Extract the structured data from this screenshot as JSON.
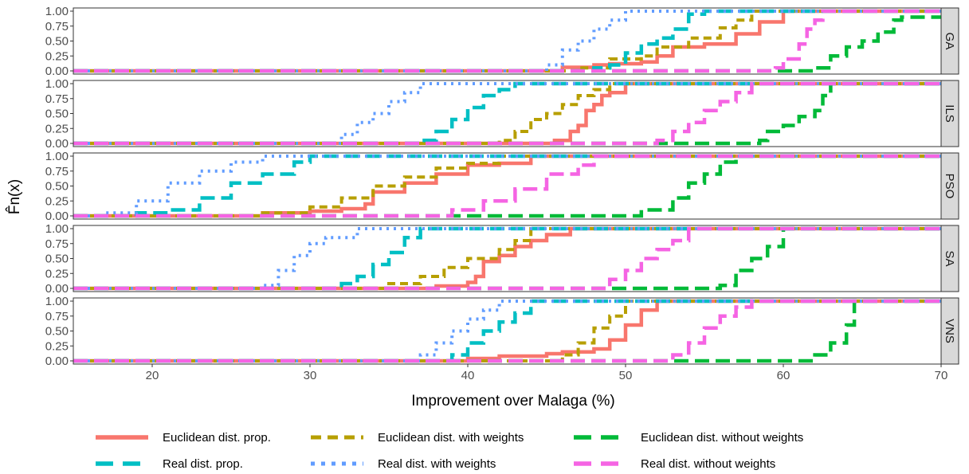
{
  "chart_data": {
    "type": "line",
    "subtype": "empirical-cdf-step",
    "xlabel": "Improvement over Malaga (%)",
    "ylabel": "F̂n(x)",
    "xlim": [
      15,
      70
    ],
    "ylim": [
      0,
      1
    ],
    "x_ticks": [
      20,
      30,
      40,
      50,
      60,
      70
    ],
    "y_ticks": [
      0.0,
      0.25,
      0.5,
      0.75,
      1.0
    ],
    "y_tick_labels": [
      "0.00",
      "0.25",
      "0.50",
      "0.75",
      "1.00"
    ],
    "grid": false,
    "facets": [
      "GA",
      "ILS",
      "PSO",
      "SA",
      "VNS"
    ],
    "legend_position": "bottom",
    "series": [
      {
        "name": "Euclidean dist. prop.",
        "color": "#F8766D",
        "dash": "solid",
        "cdf": {
          "GA": [
            [
              45.5,
              0
            ],
            [
              46,
              0.06
            ],
            [
              48,
              0.1
            ],
            [
              49,
              0.12
            ],
            [
              51,
              0.15
            ],
            [
              52,
              0.25
            ],
            [
              53,
              0.4
            ],
            [
              55,
              0.45
            ],
            [
              57,
              0.62
            ],
            [
              58.5,
              0.82
            ],
            [
              60,
              1
            ]
          ],
          "ILS": [
            [
              44.5,
              0
            ],
            [
              45.5,
              0.05
            ],
            [
              46.5,
              0.2
            ],
            [
              47,
              0.3
            ],
            [
              47.5,
              0.55
            ],
            [
              48,
              0.65
            ],
            [
              48.5,
              0.8
            ],
            [
              49,
              0.85
            ],
            [
              50,
              1
            ]
          ],
          "PSO": [
            [
              25,
              0
            ],
            [
              27,
              0.05
            ],
            [
              30,
              0.08
            ],
            [
              32,
              0.12
            ],
            [
              33.5,
              0.2
            ],
            [
              34,
              0.4
            ],
            [
              36,
              0.55
            ],
            [
              38,
              0.7
            ],
            [
              40,
              0.85
            ],
            [
              42,
              0.88
            ],
            [
              44,
              1
            ]
          ],
          "SA": [
            [
              36,
              0
            ],
            [
              38,
              0.04
            ],
            [
              40,
              0.1
            ],
            [
              40.5,
              0.2
            ],
            [
              41,
              0.45
            ],
            [
              42,
              0.55
            ],
            [
              43,
              0.7
            ],
            [
              44,
              0.8
            ],
            [
              45,
              0.9
            ],
            [
              46.5,
              1
            ]
          ],
          "VNS": [
            [
              37,
              0
            ],
            [
              40,
              0.04
            ],
            [
              42,
              0.08
            ],
            [
              45,
              0.12
            ],
            [
              46,
              0.15
            ],
            [
              48,
              0.2
            ],
            [
              49,
              0.35
            ],
            [
              50,
              0.6
            ],
            [
              51,
              0.85
            ],
            [
              52,
              1
            ]
          ]
        }
      },
      {
        "name": "Euclidean dist. with weights",
        "color": "#B79F00",
        "dash": "dashed",
        "cdf": {
          "GA": [
            [
              44,
              0
            ],
            [
              47,
              0.05
            ],
            [
              49,
              0.2
            ],
            [
              51,
              0.25
            ],
            [
              52,
              0.4
            ],
            [
              54,
              0.55
            ],
            [
              56,
              0.72
            ],
            [
              57,
              0.85
            ],
            [
              58,
              1
            ]
          ],
          "ILS": [
            [
              40,
              0
            ],
            [
              42,
              0.05
            ],
            [
              43,
              0.2
            ],
            [
              44,
              0.4
            ],
            [
              45,
              0.5
            ],
            [
              46,
              0.65
            ],
            [
              47,
              0.8
            ],
            [
              48,
              0.9
            ],
            [
              49,
              1
            ]
          ],
          "PSO": [
            [
              24,
              0
            ],
            [
              27,
              0.05
            ],
            [
              30,
              0.15
            ],
            [
              32,
              0.3
            ],
            [
              34,
              0.5
            ],
            [
              36,
              0.65
            ],
            [
              38,
              0.8
            ],
            [
              40,
              0.88
            ],
            [
              42,
              1
            ]
          ],
          "SA": [
            [
              32,
              0
            ],
            [
              35,
              0.08
            ],
            [
              37,
              0.2
            ],
            [
              38.5,
              0.35
            ],
            [
              40,
              0.5
            ],
            [
              42,
              0.65
            ],
            [
              43,
              0.8
            ],
            [
              44,
              1
            ]
          ],
          "VNS": [
            [
              43,
              0
            ],
            [
              46,
              0.1
            ],
            [
              47,
              0.3
            ],
            [
              48,
              0.55
            ],
            [
              49,
              0.75
            ],
            [
              50,
              1
            ]
          ]
        }
      },
      {
        "name": "Euclidean dist. without weights",
        "color": "#00BA38",
        "dash": "longdash",
        "cdf": {
          "GA": [
            [
              60,
              0
            ],
            [
              62,
              0.05
            ],
            [
              63,
              0.25
            ],
            [
              64,
              0.4
            ],
            [
              65,
              0.5
            ],
            [
              66,
              0.65
            ],
            [
              67,
              0.85
            ],
            [
              67.5,
              0.9
            ]
          ],
          "ILS": [
            [
              56,
              0
            ],
            [
              58.5,
              0.05
            ],
            [
              59,
              0.2
            ],
            [
              60,
              0.3
            ],
            [
              61,
              0.45
            ],
            [
              62,
              0.55
            ],
            [
              62.5,
              0.8
            ],
            [
              63,
              1
            ]
          ],
          "PSO": [
            [
              49,
              0
            ],
            [
              51,
              0.1
            ],
            [
              53,
              0.3
            ],
            [
              54,
              0.55
            ],
            [
              55,
              0.7
            ],
            [
              56,
              0.9
            ],
            [
              57,
              1
            ]
          ],
          "SA": [
            [
              55,
              0
            ],
            [
              56,
              0.05
            ],
            [
              57,
              0.3
            ],
            [
              58,
              0.5
            ],
            [
              59,
              0.7
            ],
            [
              60,
              1
            ]
          ],
          "VNS": [
            [
              60,
              0
            ],
            [
              62,
              0.1
            ],
            [
              63,
              0.3
            ],
            [
              64,
              0.6
            ],
            [
              64.5,
              1
            ]
          ]
        }
      },
      {
        "name": "Real dist. prop.",
        "color": "#00BFC4",
        "dash": "longdash",
        "cdf": {
          "GA": [
            [
              46,
              0
            ],
            [
              48,
              0.05
            ],
            [
              49,
              0.1
            ],
            [
              50,
              0.3
            ],
            [
              51,
              0.45
            ],
            [
              52,
              0.55
            ],
            [
              53,
              0.7
            ],
            [
              54,
              0.95
            ],
            [
              55,
              1
            ]
          ],
          "ILS": [
            [
              34,
              0
            ],
            [
              37,
              0.05
            ],
            [
              38,
              0.2
            ],
            [
              39,
              0.4
            ],
            [
              40,
              0.6
            ],
            [
              41,
              0.8
            ],
            [
              42,
              0.9
            ],
            [
              43,
              1
            ]
          ],
          "PSO": [
            [
              17,
              0
            ],
            [
              19,
              0.05
            ],
            [
              21,
              0.1
            ],
            [
              23,
              0.3
            ],
            [
              25,
              0.55
            ],
            [
              27,
              0.7
            ],
            [
              29,
              0.9
            ],
            [
              30,
              1
            ]
          ],
          "SA": [
            [
              31,
              0
            ],
            [
              32,
              0.08
            ],
            [
              33,
              0.2
            ],
            [
              34,
              0.4
            ],
            [
              35,
              0.6
            ],
            [
              36,
              0.85
            ],
            [
              37,
              1
            ]
          ],
          "VNS": [
            [
              38,
              0
            ],
            [
              39,
              0.1
            ],
            [
              40,
              0.3
            ],
            [
              41,
              0.5
            ],
            [
              42,
              0.65
            ],
            [
              43,
              0.8
            ],
            [
              44,
              1
            ]
          ]
        }
      },
      {
        "name": "Real dist. with weights",
        "color": "#619CFF",
        "dash": "dotted",
        "cdf": {
          "GA": [
            [
              43,
              0
            ],
            [
              45,
              0.1
            ],
            [
              46,
              0.35
            ],
            [
              47,
              0.5
            ],
            [
              48,
              0.7
            ],
            [
              49,
              0.85
            ],
            [
              50,
              1
            ]
          ],
          "ILS": [
            [
              30,
              0
            ],
            [
              32,
              0.15
            ],
            [
              33,
              0.35
            ],
            [
              34,
              0.5
            ],
            [
              35,
              0.7
            ],
            [
              36,
              0.85
            ],
            [
              37,
              1
            ]
          ],
          "PSO": [
            [
              15,
              0
            ],
            [
              17,
              0.05
            ],
            [
              19,
              0.25
            ],
            [
              21,
              0.55
            ],
            [
              23,
              0.75
            ],
            [
              25,
              0.9
            ],
            [
              27,
              1
            ]
          ],
          "SA": [
            [
              26,
              0
            ],
            [
              27,
              0.05
            ],
            [
              28,
              0.3
            ],
            [
              29,
              0.55
            ],
            [
              30,
              0.75
            ],
            [
              31,
              0.85
            ],
            [
              33,
              1
            ]
          ],
          "VNS": [
            [
              36,
              0
            ],
            [
              37,
              0.1
            ],
            [
              38,
              0.3
            ],
            [
              39,
              0.5
            ],
            [
              40,
              0.7
            ],
            [
              41,
              0.85
            ],
            [
              42,
              1
            ]
          ]
        }
      },
      {
        "name": "Real dist. without weights",
        "color": "#F564E3",
        "dash": "longdash",
        "cdf": {
          "GA": [
            [
              58,
              0
            ],
            [
              59.5,
              0.05
            ],
            [
              60,
              0.2
            ],
            [
              61,
              0.45
            ],
            [
              61.5,
              0.7
            ],
            [
              62,
              0.85
            ],
            [
              62.5,
              1
            ]
          ],
          "ILS": [
            [
              50,
              0
            ],
            [
              52,
              0.05
            ],
            [
              53,
              0.2
            ],
            [
              54,
              0.35
            ],
            [
              55,
              0.55
            ],
            [
              56,
              0.7
            ],
            [
              57,
              0.85
            ],
            [
              58,
              1
            ]
          ],
          "PSO": [
            [
              37,
              0
            ],
            [
              39,
              0.1
            ],
            [
              41,
              0.25
            ],
            [
              43,
              0.45
            ],
            [
              45,
              0.7
            ],
            [
              47,
              0.85
            ],
            [
              48,
              1
            ]
          ],
          "SA": [
            [
              47,
              0
            ],
            [
              49,
              0.15
            ],
            [
              50,
              0.3
            ],
            [
              51,
              0.5
            ],
            [
              52,
              0.65
            ],
            [
              53,
              0.8
            ],
            [
              54,
              1
            ]
          ],
          "VNS": [
            [
              51,
              0
            ],
            [
              53,
              0.1
            ],
            [
              54,
              0.3
            ],
            [
              55,
              0.55
            ],
            [
              56,
              0.75
            ],
            [
              57,
              0.9
            ],
            [
              58,
              1
            ]
          ]
        }
      }
    ]
  }
}
